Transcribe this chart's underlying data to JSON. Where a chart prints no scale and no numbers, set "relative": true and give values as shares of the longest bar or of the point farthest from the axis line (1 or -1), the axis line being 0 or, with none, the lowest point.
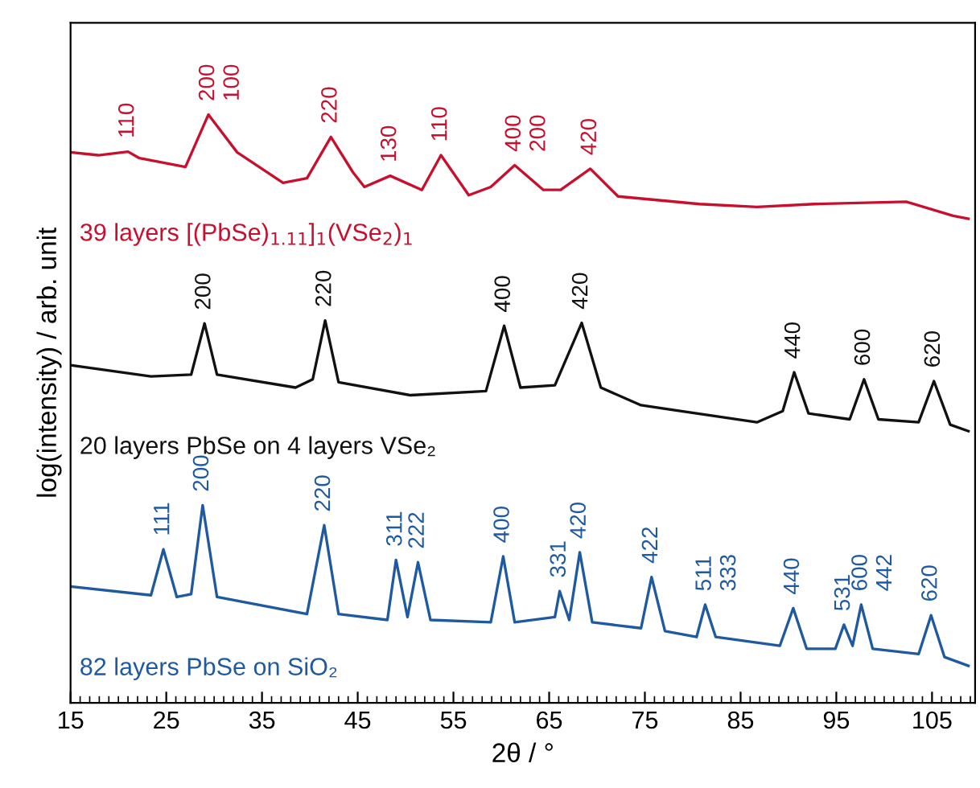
{
  "chart_data": {
    "type": "line",
    "relative": true,
    "xlabel": "2θ / °",
    "ylabel": "log(intensity) / arb. unit",
    "xlim": [
      15,
      109.5
    ],
    "xticks": [
      15,
      25,
      35,
      45,
      55,
      65,
      75,
      85,
      95,
      105
    ],
    "grid": false,
    "legend": false,
    "marker": "none",
    "line_style": "solid",
    "tick_labels": "x",
    "series": [
      {
        "name": "39 layers [(PbSe)$_{1.11}$]$_{1}$(VSe$_{2}$)$_{1}$",
        "color": "#c8102e",
        "x": [
          15.0,
          17.9,
          21.0,
          22.2,
          27.0,
          29.4,
          32.4,
          37.2,
          39.7,
          42.2,
          44.5,
          45.7,
          48.4,
          51.7,
          53.7,
          56.6,
          58.9,
          61.4,
          64.4,
          66.2,
          69.3,
          72.2,
          80.7,
          86.7,
          92.7,
          102.3,
          107.2,
          108.8
        ],
        "values": [
          0.936,
          0.931,
          0.937,
          0.926,
          0.911,
          1.0,
          0.936,
          0.884,
          0.892,
          0.962,
          0.902,
          0.877,
          0.896,
          0.872,
          0.931,
          0.863,
          0.877,
          0.914,
          0.872,
          0.872,
          0.908,
          0.861,
          0.848,
          0.843,
          0.848,
          0.852,
          0.828,
          0.823
        ]
      },
      {
        "name": "20 layers PbSe on 4 layers VSe₂",
        "color": "#111111",
        "x": [
          15.0,
          23.4,
          27.6,
          29.0,
          30.3,
          38.5,
          40.3,
          41.6,
          43.0,
          50.5,
          58.4,
          60.3,
          62.0,
          65.6,
          68.4,
          70.4,
          74.6,
          86.7,
          89.4,
          90.6,
          92.1,
          96.4,
          97.9,
          99.4,
          103.6,
          105.2,
          106.9,
          108.8
        ],
        "values": [
          0.574,
          0.555,
          0.558,
          0.645,
          0.558,
          0.536,
          0.55,
          0.65,
          0.545,
          0.523,
          0.53,
          0.641,
          0.536,
          0.54,
          0.646,
          0.536,
          0.506,
          0.477,
          0.496,
          0.562,
          0.492,
          0.482,
          0.55,
          0.482,
          0.477,
          0.547,
          0.473,
          0.462
        ]
      },
      {
        "name": "82 layers PbSe on SiO₂",
        "color": "#1f5aa0",
        "x": [
          15.0,
          23.4,
          24.7,
          26.1,
          27.6,
          28.8,
          30.3,
          39.7,
          41.5,
          43.0,
          48.1,
          49.0,
          50.2,
          51.3,
          52.6,
          58.9,
          60.2,
          61.4,
          65.6,
          66.1,
          67.1,
          68.2,
          69.5,
          74.6,
          75.7,
          77.1,
          80.4,
          81.3,
          82.4,
          89.1,
          90.5,
          91.9,
          94.9,
          95.8,
          96.7,
          97.6,
          98.8,
          103.6,
          104.9,
          106.3,
          108.8
        ],
        "values": [
          0.198,
          0.183,
          0.261,
          0.18,
          0.185,
          0.336,
          0.18,
          0.151,
          0.302,
          0.151,
          0.141,
          0.243,
          0.146,
          0.239,
          0.141,
          0.137,
          0.249,
          0.137,
          0.146,
          0.19,
          0.141,
          0.256,
          0.137,
          0.127,
          0.214,
          0.122,
          0.112,
          0.167,
          0.112,
          0.097,
          0.161,
          0.092,
          0.092,
          0.133,
          0.097,
          0.167,
          0.092,
          0.083,
          0.149,
          0.078,
          0.063
        ]
      }
    ],
    "annotations": [
      {
        "text": "110",
        "x": 21.0,
        "y": 0.937
      },
      {
        "text": "200",
        "x": 29.4,
        "y": 1.0
      },
      {
        "text": "100",
        "x": 29.4,
        "y": 1.0
      },
      {
        "text": "220",
        "x": 42.2,
        "y": 0.962
      },
      {
        "text": "130",
        "x": 48.4,
        "y": 0.896
      },
      {
        "text": "110",
        "x": 53.7,
        "y": 0.931
      },
      {
        "text": "400",
        "x": 61.4,
        "y": 0.914
      },
      {
        "text": "200",
        "x": 61.4,
        "y": 0.914
      },
      {
        "text": "420",
        "x": 69.3,
        "y": 0.908
      },
      {
        "text": "200",
        "x": 29.0,
        "y": 0.645
      },
      {
        "text": "220",
        "x": 41.6,
        "y": 0.65
      },
      {
        "text": "400",
        "x": 60.3,
        "y": 0.641
      },
      {
        "text": "420",
        "x": 68.4,
        "y": 0.646
      },
      {
        "text": "440",
        "x": 90.6,
        "y": 0.562
      },
      {
        "text": "600",
        "x": 97.9,
        "y": 0.55
      },
      {
        "text": "620",
        "x": 105.2,
        "y": 0.547
      },
      {
        "text": "111",
        "x": 24.7,
        "y": 0.261
      },
      {
        "text": "200",
        "x": 28.8,
        "y": 0.336
      },
      {
        "text": "220",
        "x": 41.5,
        "y": 0.302
      },
      {
        "text": "311",
        "x": 49.0,
        "y": 0.243
      },
      {
        "text": "222",
        "x": 51.3,
        "y": 0.239
      },
      {
        "text": "400",
        "x": 60.2,
        "y": 0.249
      },
      {
        "text": "331",
        "x": 66.1,
        "y": 0.19
      },
      {
        "text": "420",
        "x": 68.2,
        "y": 0.256
      },
      {
        "text": "422",
        "x": 75.7,
        "y": 0.214
      },
      {
        "text": "511",
        "x": 81.3,
        "y": 0.167
      },
      {
        "text": "333",
        "x": 81.3,
        "y": 0.167
      },
      {
        "text": "440",
        "x": 90.5,
        "y": 0.161
      },
      {
        "text": "531",
        "x": 95.8,
        "y": 0.133
      },
      {
        "text": "600",
        "x": 97.6,
        "y": 0.167
      },
      {
        "text": "442",
        "x": 97.6,
        "y": 0.167
      },
      {
        "text": "620",
        "x": 104.9,
        "y": 0.149
      }
    ]
  }
}
